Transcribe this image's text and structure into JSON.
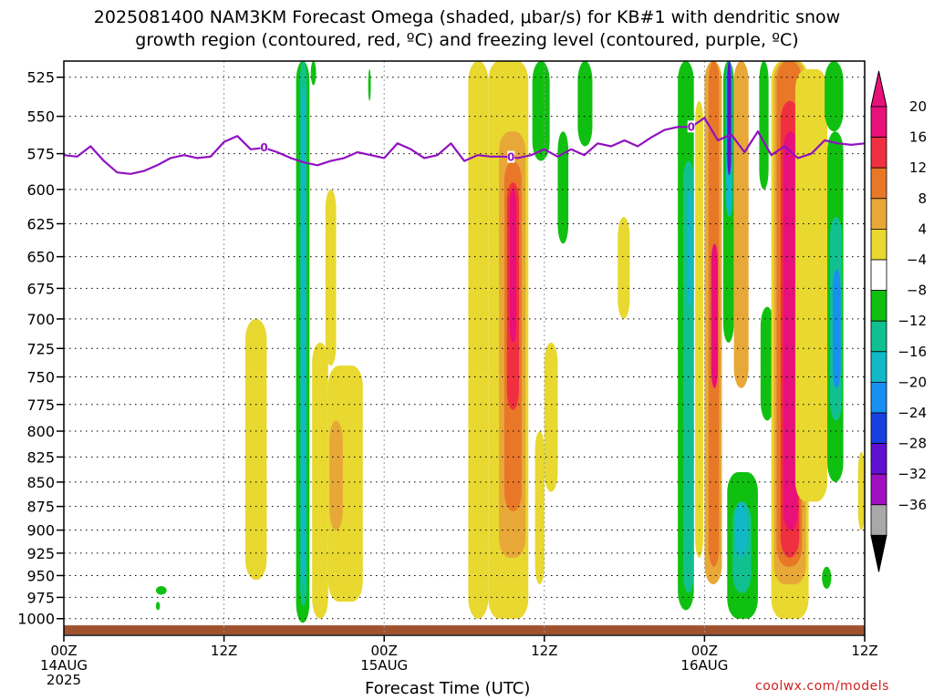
{
  "title_line1": "2025081400 NAM3KM Forecast Omega (shaded, μbar/s) for KB#1 with dendritic snow",
  "title_line2": "growth region (contoured, red, ºC) and freezing level (contoured, purple, ºC)",
  "credit": "coolwx.com/models",
  "chart_data": {
    "type": "heatmap",
    "xlabel": "Forecast Time (UTC)",
    "x_ticks": [
      {
        "hour": 0,
        "label": "00Z",
        "sub1": "14AUG",
        "sub2": "2025"
      },
      {
        "hour": 12,
        "label": "12Z",
        "sub1": "",
        "sub2": ""
      },
      {
        "hour": 24,
        "label": "00Z",
        "sub1": "15AUG",
        "sub2": ""
      },
      {
        "hour": 36,
        "label": "12Z",
        "sub1": "",
        "sub2": ""
      },
      {
        "hour": 48,
        "label": "00Z",
        "sub1": "16AUG",
        "sub2": ""
      },
      {
        "hour": 60,
        "label": "12Z",
        "sub1": "",
        "sub2": ""
      }
    ],
    "xlim": [
      0,
      60
    ],
    "ylabel": "",
    "y_ticks": [
      525,
      550,
      575,
      600,
      625,
      650,
      675,
      700,
      725,
      750,
      775,
      800,
      825,
      850,
      875,
      900,
      925,
      950,
      975,
      1000
    ],
    "ylim": [
      1020,
      515
    ],
    "y_scale": "log",
    "grid": true,
    "colorbar": {
      "ticks": [
        "20",
        "16",
        "12",
        "8",
        "4",
        "−4",
        "−8",
        "−12",
        "−16",
        "−20",
        "−24",
        "−28",
        "−32",
        "−36"
      ],
      "colors": [
        "#e8107a",
        "#f03040",
        "#e87828",
        "#e8a838",
        "#e8d830",
        "#ffffff",
        "#10c010",
        "#10c090",
        "#10b8c8",
        "#1890f0",
        "#1840e0",
        "#6010d0",
        "#a010c0",
        "#a8a8a8"
      ],
      "top_arrow_color": "#e8107a",
      "bottom_arrow_color": "#000000"
    },
    "omega_bands": [
      {
        "h0": 17.4,
        "h1": 18.4,
        "p_top": 515,
        "p_bot": 1005,
        "value": -8
      },
      {
        "h0": 17.7,
        "h1": 18.2,
        "p_top": 515,
        "p_bot": 985,
        "value": -12
      },
      {
        "h0": 17.85,
        "h1": 18.1,
        "p_top": 530,
        "p_bot": 960,
        "value": -16
      },
      {
        "h0": 18.5,
        "h1": 18.9,
        "p_top": 515,
        "p_bot": 530,
        "value": -8
      },
      {
        "h0": 18.6,
        "h1": 19.8,
        "p_top": 720,
        "p_bot": 1000,
        "value": 4
      },
      {
        "h0": 19.8,
        "h1": 22.4,
        "p_top": 740,
        "p_bot": 980,
        "value": 4
      },
      {
        "h0": 19.9,
        "h1": 20.9,
        "p_top": 790,
        "p_bot": 900,
        "value": 8
      },
      {
        "h0": 19.6,
        "h1": 20.4,
        "p_top": 600,
        "p_bot": 740,
        "value": 4
      },
      {
        "h0": 13.6,
        "h1": 15.2,
        "p_top": 700,
        "p_bot": 955,
        "value": 4
      },
      {
        "h0": 30.3,
        "h1": 31.8,
        "p_top": 515,
        "p_bot": 1000,
        "value": 4
      },
      {
        "h0": 31.8,
        "h1": 34.8,
        "p_top": 515,
        "p_bot": 1000,
        "value": 4
      },
      {
        "h0": 32.6,
        "h1": 34.6,
        "p_top": 560,
        "p_bot": 930,
        "value": 8
      },
      {
        "h0": 33.0,
        "h1": 34.3,
        "p_top": 580,
        "p_bot": 880,
        "value": 12
      },
      {
        "h0": 33.2,
        "h1": 34.1,
        "p_top": 595,
        "p_bot": 780,
        "value": 16
      },
      {
        "h0": 33.4,
        "h1": 33.9,
        "p_top": 600,
        "p_bot": 720,
        "value": 20
      },
      {
        "h0": 35.1,
        "h1": 36.4,
        "p_top": 515,
        "p_bot": 580,
        "value": -8
      },
      {
        "h0": 35.3,
        "h1": 36.0,
        "p_top": 800,
        "p_bot": 960,
        "value": 4
      },
      {
        "h0": 36.0,
        "h1": 37.0,
        "p_top": 720,
        "p_bot": 860,
        "value": 4
      },
      {
        "h0": 37.0,
        "h1": 37.8,
        "p_top": 560,
        "p_bot": 640,
        "value": -8
      },
      {
        "h0": 38.5,
        "h1": 39.6,
        "p_top": 515,
        "p_bot": 570,
        "value": -8
      },
      {
        "h0": 41.5,
        "h1": 42.4,
        "p_top": 620,
        "p_bot": 700,
        "value": 4
      },
      {
        "h0": 46.0,
        "h1": 47.2,
        "p_top": 515,
        "p_bot": 990,
        "value": -8
      },
      {
        "h0": 46.4,
        "h1": 47.2,
        "p_top": 580,
        "p_bot": 970,
        "value": -12
      },
      {
        "h0": 46.7,
        "h1": 47.1,
        "p_top": 600,
        "p_bot": 690,
        "value": -16
      },
      {
        "h0": 47.3,
        "h1": 47.9,
        "p_top": 540,
        "p_bot": 930,
        "value": 4
      },
      {
        "h0": 48.0,
        "h1": 49.3,
        "p_top": 515,
        "p_bot": 960,
        "value": 8
      },
      {
        "h0": 48.3,
        "h1": 49.1,
        "p_top": 515,
        "p_bot": 940,
        "value": 12
      },
      {
        "h0": 48.5,
        "h1": 49.0,
        "p_top": 640,
        "p_bot": 760,
        "value": 20
      },
      {
        "h0": 49.4,
        "h1": 50.2,
        "p_top": 515,
        "p_bot": 720,
        "value": -8
      },
      {
        "h0": 49.6,
        "h1": 50.1,
        "p_top": 515,
        "p_bot": 620,
        "value": -16
      },
      {
        "h0": 49.7,
        "h1": 50.0,
        "p_top": 515,
        "p_bot": 590,
        "value": -28
      },
      {
        "h0": 49.7,
        "h1": 52.0,
        "p_top": 840,
        "p_bot": 1000,
        "value": -8
      },
      {
        "h0": 50.1,
        "h1": 51.5,
        "p_top": 870,
        "p_bot": 970,
        "value": -12
      },
      {
        "h0": 50.3,
        "h1": 51.2,
        "p_top": 870,
        "p_bot": 930,
        "value": -16
      },
      {
        "h0": 50.2,
        "h1": 51.3,
        "p_top": 515,
        "p_bot": 760,
        "value": 8
      },
      {
        "h0": 52.1,
        "h1": 52.8,
        "p_top": 515,
        "p_bot": 600,
        "value": -8
      },
      {
        "h0": 52.2,
        "h1": 53.2,
        "p_top": 690,
        "p_bot": 790,
        "value": -8
      },
      {
        "h0": 53.0,
        "h1": 55.8,
        "p_top": 515,
        "p_bot": 1000,
        "value": 4
      },
      {
        "h0": 53.2,
        "h1": 55.6,
        "p_top": 515,
        "p_bot": 960,
        "value": 8
      },
      {
        "h0": 53.4,
        "h1": 55.3,
        "p_top": 515,
        "p_bot": 940,
        "value": 12
      },
      {
        "h0": 53.7,
        "h1": 55.1,
        "p_top": 540,
        "p_bot": 930,
        "value": 16
      },
      {
        "h0": 53.9,
        "h1": 55.0,
        "p_top": 560,
        "p_bot": 900,
        "value": 20
      },
      {
        "h0": 54.8,
        "h1": 57.2,
        "p_top": 520,
        "p_bot": 870,
        "value": 4
      },
      {
        "h0": 57.0,
        "h1": 58.4,
        "p_top": 515,
        "p_bot": 560,
        "value": -8
      },
      {
        "h0": 57.2,
        "h1": 58.4,
        "p_top": 560,
        "p_bot": 850,
        "value": -8
      },
      {
        "h0": 57.4,
        "h1": 58.3,
        "p_top": 620,
        "p_bot": 790,
        "value": -12
      },
      {
        "h0": 57.6,
        "h1": 58.2,
        "p_top": 660,
        "p_bot": 760,
        "value": -20
      },
      {
        "h0": 56.8,
        "h1": 57.5,
        "p_top": 940,
        "p_bot": 965,
        "value": -8
      },
      {
        "h0": 59.5,
        "h1": 60.0,
        "p_top": 820,
        "p_bot": 900,
        "value": 4
      },
      {
        "h0": 6.9,
        "h1": 7.7,
        "p_top": 962,
        "p_bot": 972,
        "value": -8
      },
      {
        "h0": 6.9,
        "h1": 7.2,
        "p_top": 980,
        "p_bot": 990,
        "value": -8
      },
      {
        "h0": 22.8,
        "h1": 23.0,
        "p_top": 520,
        "p_bot": 540,
        "value": -8
      }
    ],
    "freezing_level": {
      "color": "#9010c0",
      "label": "0",
      "hours": [
        0,
        1,
        2,
        3,
        4,
        5,
        6,
        7,
        8,
        9,
        10,
        11,
        12,
        13,
        14,
        15,
        16,
        17,
        18,
        19,
        20,
        21,
        22,
        23,
        24,
        25,
        26,
        27,
        28,
        29,
        30,
        31,
        32,
        33,
        34,
        35,
        36,
        37,
        38,
        39,
        40,
        41,
        42,
        43,
        44,
        45,
        46,
        47,
        48,
        49,
        50,
        51,
        52,
        53,
        54,
        55,
        56,
        57,
        58,
        59,
        60
      ],
      "pressure": [
        576,
        577,
        570,
        580,
        588,
        589,
        587,
        583,
        578,
        576,
        578,
        577,
        567,
        563,
        572,
        571,
        574,
        578,
        581,
        583,
        580,
        578,
        574,
        576,
        578,
        568,
        572,
        578,
        576,
        568,
        580,
        576,
        577,
        577,
        578,
        576,
        572,
        577,
        572,
        576,
        568,
        570,
        566,
        570,
        564,
        559,
        557,
        557,
        551,
        566,
        562,
        574,
        560,
        576,
        570,
        578,
        575,
        566,
        568,
        569,
        568
      ],
      "label_hours": [
        15,
        33.5,
        47
      ]
    },
    "ground": {
      "color": "#a0522d",
      "p_top": 1008,
      "p_bot": 1018
    }
  }
}
